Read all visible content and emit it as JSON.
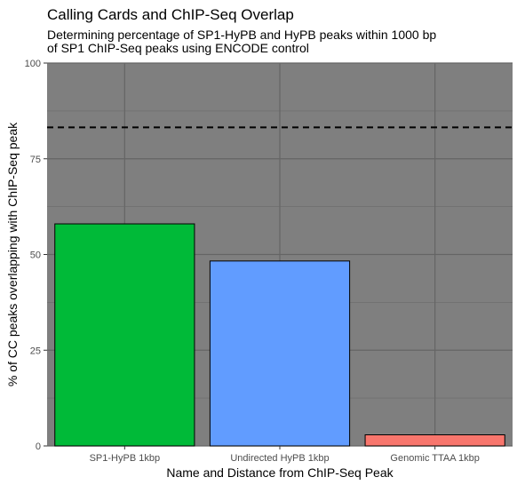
{
  "chart_data": {
    "type": "bar",
    "title": "Calling Cards and ChIP-Seq Overlap",
    "subtitle": [
      "Determining percentage of SP1-HyPB and HyPB peaks within 1000 bp",
      "of SP1 ChIP-Seq peaks using ENCODE control"
    ],
    "xlabel": "Name and Distance from ChIP-Seq Peak",
    "ylabel": "% of CC peaks overlapping with ChIP-Seq peak",
    "categories": [
      "SP1-HyPB 1kbp",
      "Undirected HyPB 1kbp",
      "Genomic TTAA 1kbp"
    ],
    "values": [
      58,
      48.3,
      2.9
    ],
    "colors": [
      "#00ba38",
      "#619cff",
      "#f8766d"
    ],
    "reference_line": {
      "value": 83.2,
      "style": "dashed"
    },
    "ylim": [
      0,
      100
    ],
    "yticks": [
      0,
      25,
      50,
      75,
      100
    ],
    "panel_background": "#7f7f7f",
    "grid": true,
    "legend": "none"
  }
}
